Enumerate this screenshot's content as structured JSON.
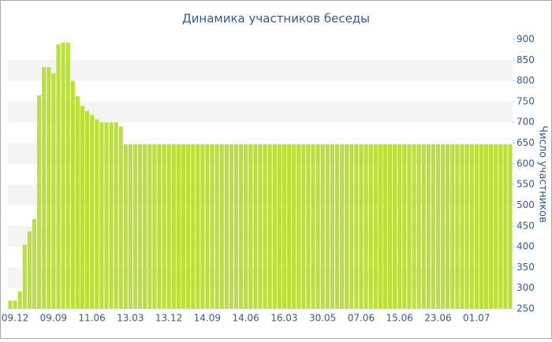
{
  "chart_data": {
    "type": "bar",
    "title": "Динамика участников беседы",
    "y_axis_label": "Число участников",
    "categories": [
      "09.12",
      null,
      null,
      null,
      null,
      null,
      null,
      null,
      "09.09",
      null,
      null,
      null,
      null,
      null,
      null,
      null,
      "11.06",
      null,
      null,
      null,
      null,
      null,
      null,
      null,
      "13.03",
      null,
      null,
      null,
      null,
      null,
      null,
      null,
      "13.12",
      null,
      null,
      null,
      null,
      null,
      null,
      null,
      "14.09",
      null,
      null,
      null,
      null,
      null,
      null,
      null,
      "14.06",
      null,
      null,
      null,
      null,
      null,
      null,
      null,
      "16.03",
      null,
      null,
      null,
      null,
      null,
      null,
      null,
      "30.05",
      null,
      null,
      null,
      null,
      null,
      null,
      null,
      "07.06",
      null,
      null,
      null,
      null,
      null,
      null,
      null,
      "15.06",
      null,
      null,
      null,
      null,
      null,
      null,
      null,
      "23.06",
      null,
      null,
      null,
      null,
      null,
      null,
      null,
      "01.07",
      null,
      null,
      null,
      null,
      null,
      null,
      null,
      null
    ],
    "values": [
      270,
      270,
      292,
      405,
      437,
      467,
      765,
      833,
      833,
      818,
      888,
      892,
      892,
      800,
      763,
      740,
      727,
      718,
      707,
      700,
      700,
      700,
      700,
      690,
      647,
      647,
      647,
      647,
      647,
      647,
      647,
      647,
      647,
      647,
      647,
      647,
      647,
      647,
      647,
      647,
      647,
      647,
      647,
      647,
      647,
      647,
      647,
      647,
      647,
      647,
      647,
      647,
      647,
      647,
      647,
      647,
      647,
      647,
      647,
      647,
      647,
      647,
      647,
      647,
      647,
      647,
      647,
      647,
      647,
      647,
      647,
      647,
      647,
      647,
      647,
      647,
      647,
      647,
      647,
      647,
      647,
      647,
      647,
      647,
      647,
      647,
      647,
      647,
      647,
      647,
      647,
      647,
      647,
      647,
      647,
      647,
      647,
      647,
      647,
      647,
      647,
      647,
      647,
      647,
      647
    ],
    "color": "#bbe03a",
    "ylim": [
      250,
      900
    ],
    "yticks": [
      250,
      300,
      350,
      400,
      450,
      500,
      550,
      600,
      650,
      700,
      750,
      800,
      850,
      900
    ],
    "grid_bands": true
  }
}
